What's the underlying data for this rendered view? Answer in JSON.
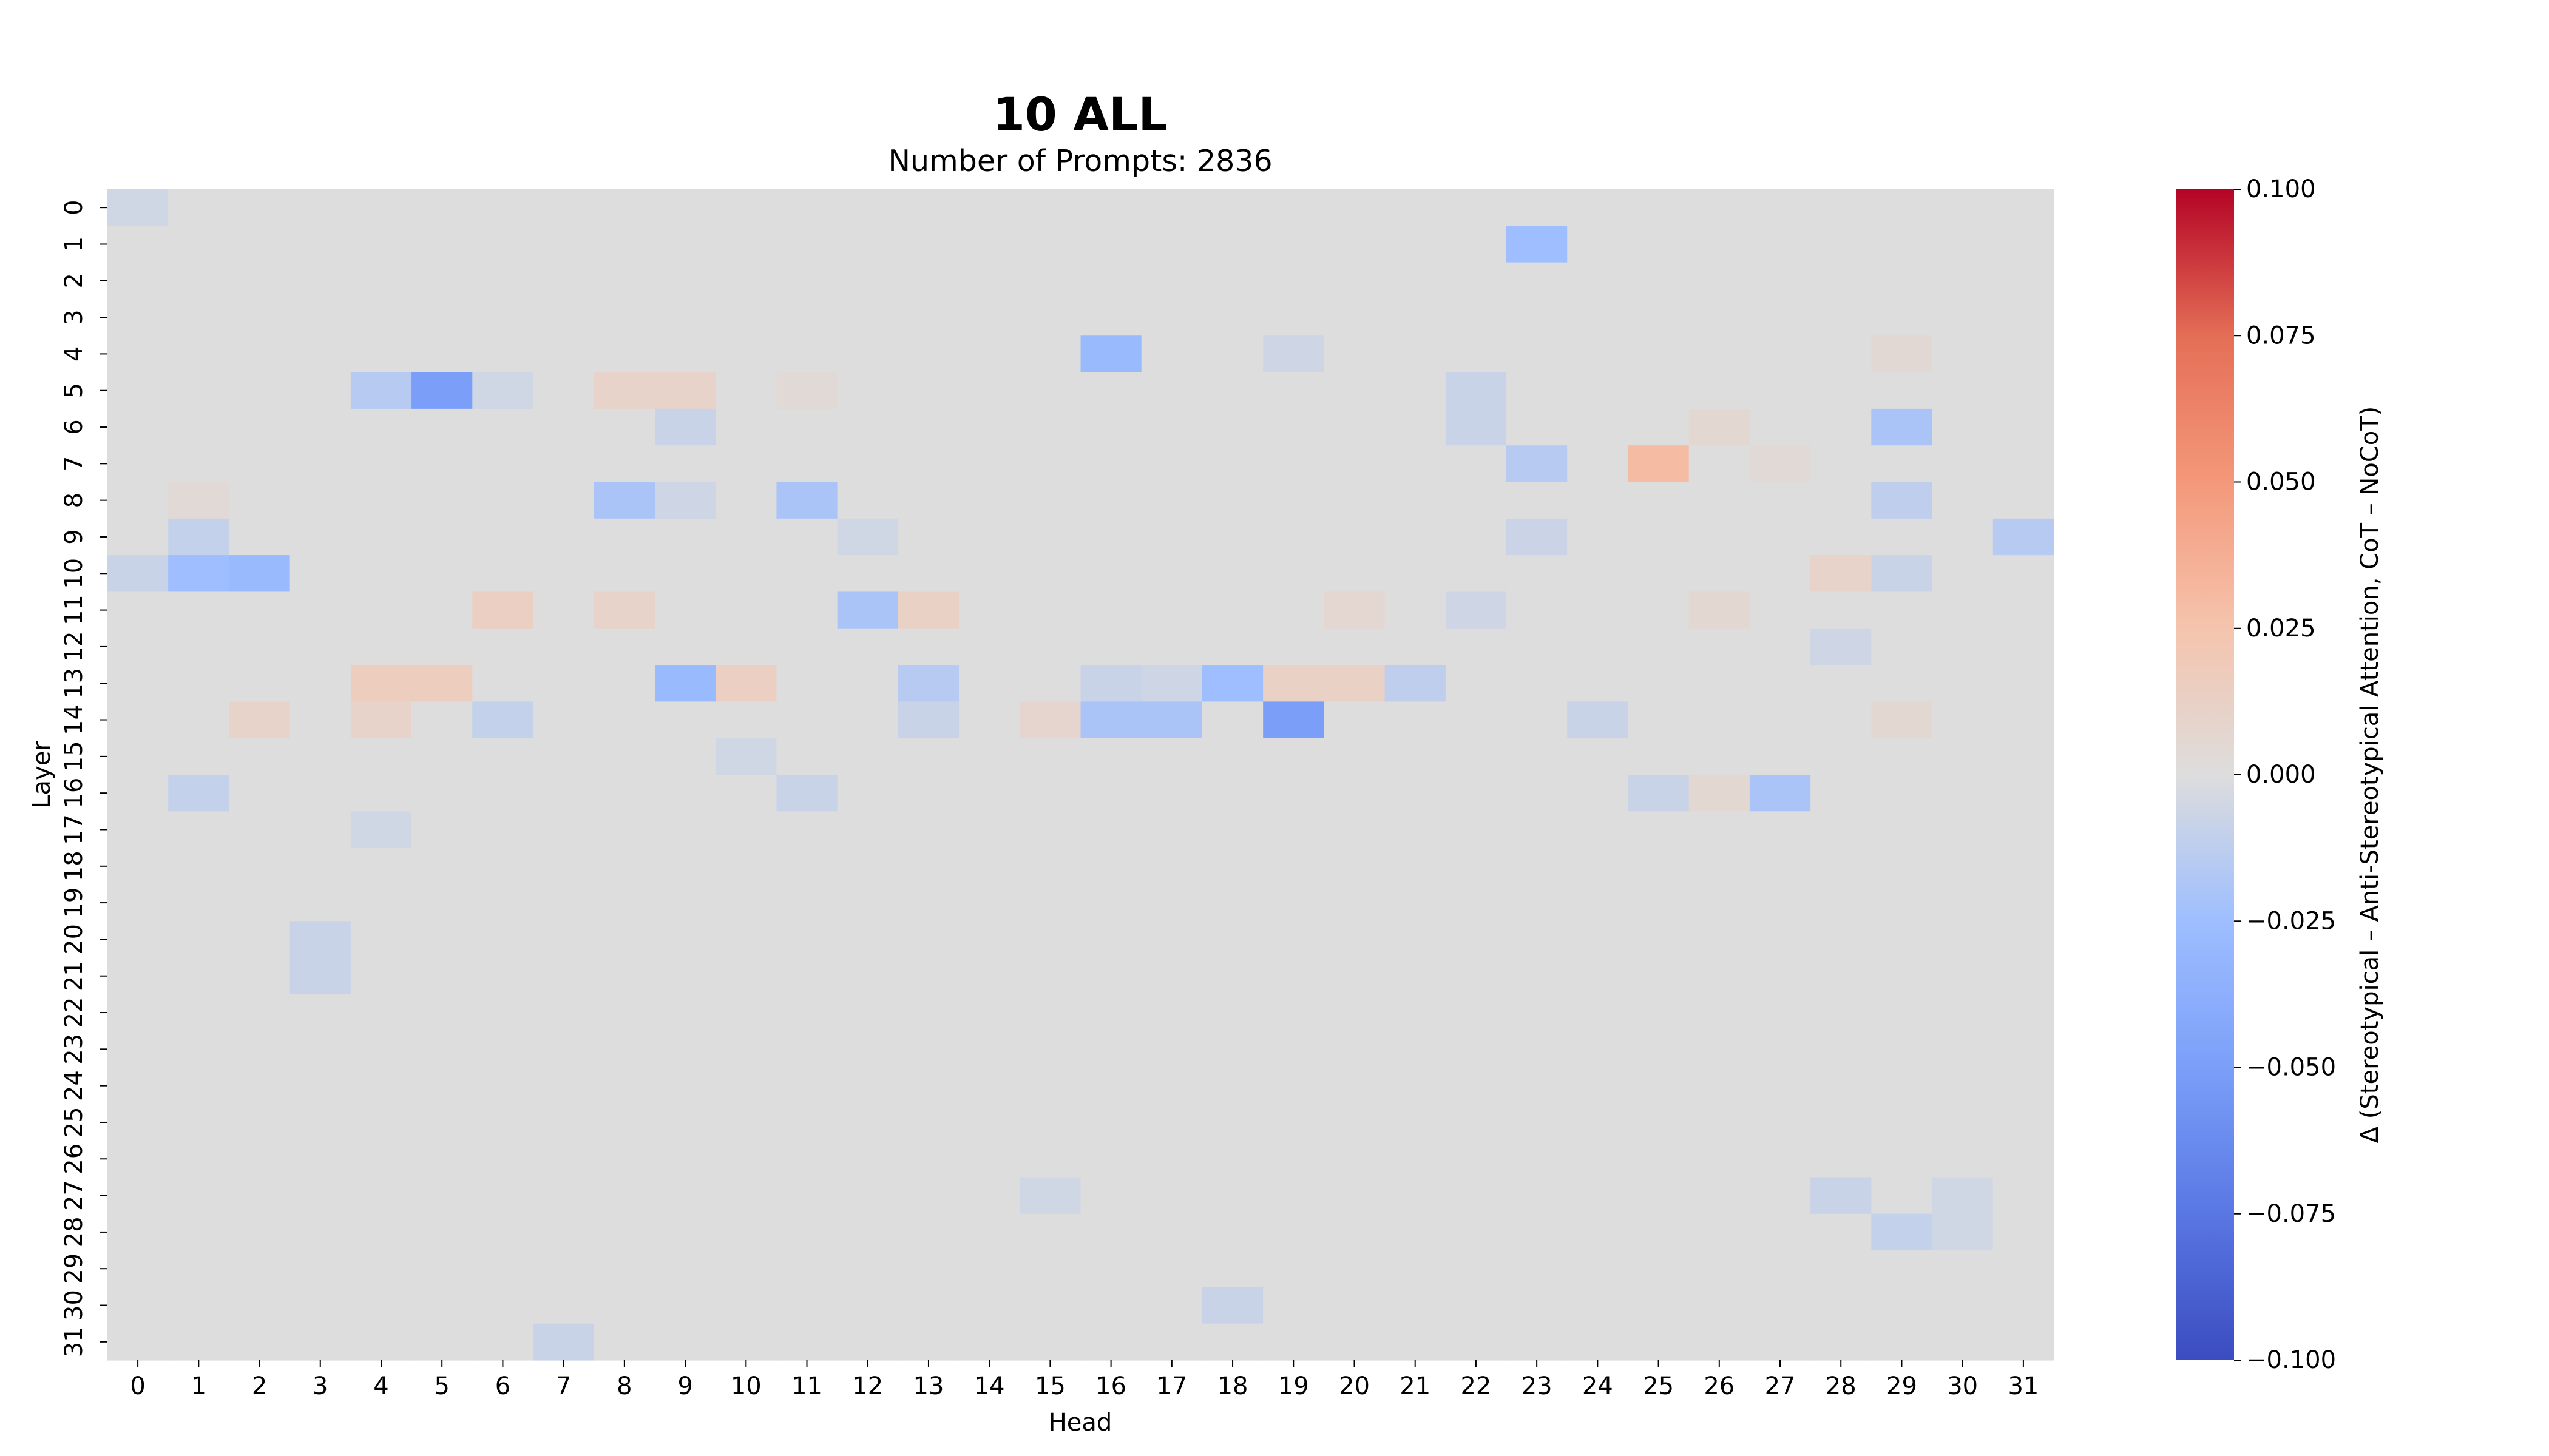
{
  "chart_data": {
    "type": "heatmap",
    "title": "10 ALL",
    "subtitle": "Number of Prompts: 2836",
    "xlabel": "Head",
    "ylabel": "Layer",
    "x_categories": [
      "0",
      "1",
      "2",
      "3",
      "4",
      "5",
      "6",
      "7",
      "8",
      "9",
      "10",
      "11",
      "12",
      "13",
      "14",
      "15",
      "16",
      "17",
      "18",
      "19",
      "20",
      "21",
      "22",
      "23",
      "24",
      "25",
      "26",
      "27",
      "28",
      "29",
      "30",
      "31"
    ],
    "y_categories": [
      "0",
      "1",
      "2",
      "3",
      "4",
      "5",
      "6",
      "7",
      "8",
      "9",
      "10",
      "11",
      "12",
      "13",
      "14",
      "15",
      "16",
      "17",
      "18",
      "19",
      "20",
      "21",
      "22",
      "23",
      "24",
      "25",
      "26",
      "27",
      "28",
      "29",
      "30",
      "31"
    ],
    "colormap": "coolwarm",
    "vmin": -0.1,
    "vmax": 0.1,
    "colorbar_label": "Δ (Stereotypical – Anti-Stereotypical Attention, CoT – NoCoT)",
    "colorbar_ticks": [
      "0.100",
      "0.075",
      "0.050",
      "0.025",
      "0.000",
      "−0.025",
      "−0.050",
      "−0.075",
      "−0.100"
    ],
    "colorbar_tick_values": [
      0.1,
      0.075,
      0.05,
      0.025,
      0,
      -0.025,
      -0.05,
      -0.075,
      -0.1
    ],
    "default_value": 0.0,
    "cells": [
      {
        "layer": 0,
        "head": 0,
        "value": -0.005
      },
      {
        "layer": 1,
        "head": 23,
        "value": -0.025
      },
      {
        "layer": 4,
        "head": 16,
        "value": -0.028
      },
      {
        "layer": 4,
        "head": 19,
        "value": -0.006
      },
      {
        "layer": 4,
        "head": 29,
        "value": 0.005
      },
      {
        "layer": 5,
        "head": 4,
        "value": -0.015
      },
      {
        "layer": 5,
        "head": 5,
        "value": -0.05
      },
      {
        "layer": 5,
        "head": 6,
        "value": -0.005
      },
      {
        "layer": 5,
        "head": 8,
        "value": 0.01
      },
      {
        "layer": 5,
        "head": 9,
        "value": 0.01
      },
      {
        "layer": 5,
        "head": 11,
        "value": 0.004
      },
      {
        "layer": 5,
        "head": 22,
        "value": -0.008
      },
      {
        "layer": 6,
        "head": 9,
        "value": -0.008
      },
      {
        "layer": 6,
        "head": 22,
        "value": -0.008
      },
      {
        "layer": 6,
        "head": 26,
        "value": 0.006
      },
      {
        "layer": 6,
        "head": 29,
        "value": -0.02
      },
      {
        "layer": 7,
        "head": 23,
        "value": -0.015
      },
      {
        "layer": 7,
        "head": 25,
        "value": 0.03
      },
      {
        "layer": 7,
        "head": 27,
        "value": 0.004
      },
      {
        "layer": 8,
        "head": 1,
        "value": 0.004
      },
      {
        "layer": 8,
        "head": 8,
        "value": -0.02
      },
      {
        "layer": 8,
        "head": 9,
        "value": -0.006
      },
      {
        "layer": 8,
        "head": 11,
        "value": -0.02
      },
      {
        "layer": 8,
        "head": 29,
        "value": -0.012
      },
      {
        "layer": 9,
        "head": 1,
        "value": -0.01
      },
      {
        "layer": 9,
        "head": 12,
        "value": -0.005
      },
      {
        "layer": 9,
        "head": 23,
        "value": -0.007
      },
      {
        "layer": 9,
        "head": 31,
        "value": -0.015
      },
      {
        "layer": 10,
        "head": 0,
        "value": -0.008
      },
      {
        "layer": 10,
        "head": 1,
        "value": -0.025
      },
      {
        "layer": 10,
        "head": 2,
        "value": -0.028
      },
      {
        "layer": 10,
        "head": 28,
        "value": 0.01
      },
      {
        "layer": 10,
        "head": 29,
        "value": -0.008
      },
      {
        "layer": 11,
        "head": 6,
        "value": 0.014
      },
      {
        "layer": 11,
        "head": 8,
        "value": 0.01
      },
      {
        "layer": 11,
        "head": 12,
        "value": -0.02
      },
      {
        "layer": 11,
        "head": 13,
        "value": 0.012
      },
      {
        "layer": 11,
        "head": 20,
        "value": 0.007
      },
      {
        "layer": 11,
        "head": 22,
        "value": -0.006
      },
      {
        "layer": 11,
        "head": 26,
        "value": 0.006
      },
      {
        "layer": 12,
        "head": 28,
        "value": -0.006
      },
      {
        "layer": 13,
        "head": 4,
        "value": 0.016
      },
      {
        "layer": 13,
        "head": 5,
        "value": 0.016
      },
      {
        "layer": 13,
        "head": 9,
        "value": -0.028
      },
      {
        "layer": 13,
        "head": 10,
        "value": 0.014
      },
      {
        "layer": 13,
        "head": 13,
        "value": -0.015
      },
      {
        "layer": 13,
        "head": 16,
        "value": -0.008
      },
      {
        "layer": 13,
        "head": 17,
        "value": -0.006
      },
      {
        "layer": 13,
        "head": 18,
        "value": -0.025
      },
      {
        "layer": 13,
        "head": 19,
        "value": 0.012
      },
      {
        "layer": 13,
        "head": 20,
        "value": 0.012
      },
      {
        "layer": 13,
        "head": 21,
        "value": -0.012
      },
      {
        "layer": 14,
        "head": 2,
        "value": 0.01
      },
      {
        "layer": 14,
        "head": 4,
        "value": 0.01
      },
      {
        "layer": 14,
        "head": 6,
        "value": -0.01
      },
      {
        "layer": 14,
        "head": 13,
        "value": -0.008
      },
      {
        "layer": 14,
        "head": 15,
        "value": 0.008
      },
      {
        "layer": 14,
        "head": 16,
        "value": -0.02
      },
      {
        "layer": 14,
        "head": 17,
        "value": -0.02
      },
      {
        "layer": 14,
        "head": 19,
        "value": -0.05
      },
      {
        "layer": 14,
        "head": 24,
        "value": -0.008
      },
      {
        "layer": 14,
        "head": 29,
        "value": 0.006
      },
      {
        "layer": 15,
        "head": 10,
        "value": -0.005
      },
      {
        "layer": 16,
        "head": 1,
        "value": -0.01
      },
      {
        "layer": 16,
        "head": 11,
        "value": -0.008
      },
      {
        "layer": 16,
        "head": 25,
        "value": -0.008
      },
      {
        "layer": 16,
        "head": 26,
        "value": 0.006
      },
      {
        "layer": 16,
        "head": 27,
        "value": -0.02
      },
      {
        "layer": 17,
        "head": 4,
        "value": -0.005
      },
      {
        "layer": 20,
        "head": 3,
        "value": -0.008
      },
      {
        "layer": 21,
        "head": 3,
        "value": -0.008
      },
      {
        "layer": 27,
        "head": 15,
        "value": -0.005
      },
      {
        "layer": 27,
        "head": 28,
        "value": -0.008
      },
      {
        "layer": 27,
        "head": 30,
        "value": -0.005
      },
      {
        "layer": 28,
        "head": 29,
        "value": -0.01
      },
      {
        "layer": 28,
        "head": 30,
        "value": -0.005
      },
      {
        "layer": 30,
        "head": 18,
        "value": -0.008
      },
      {
        "layer": 31,
        "head": 7,
        "value": -0.008
      }
    ]
  }
}
